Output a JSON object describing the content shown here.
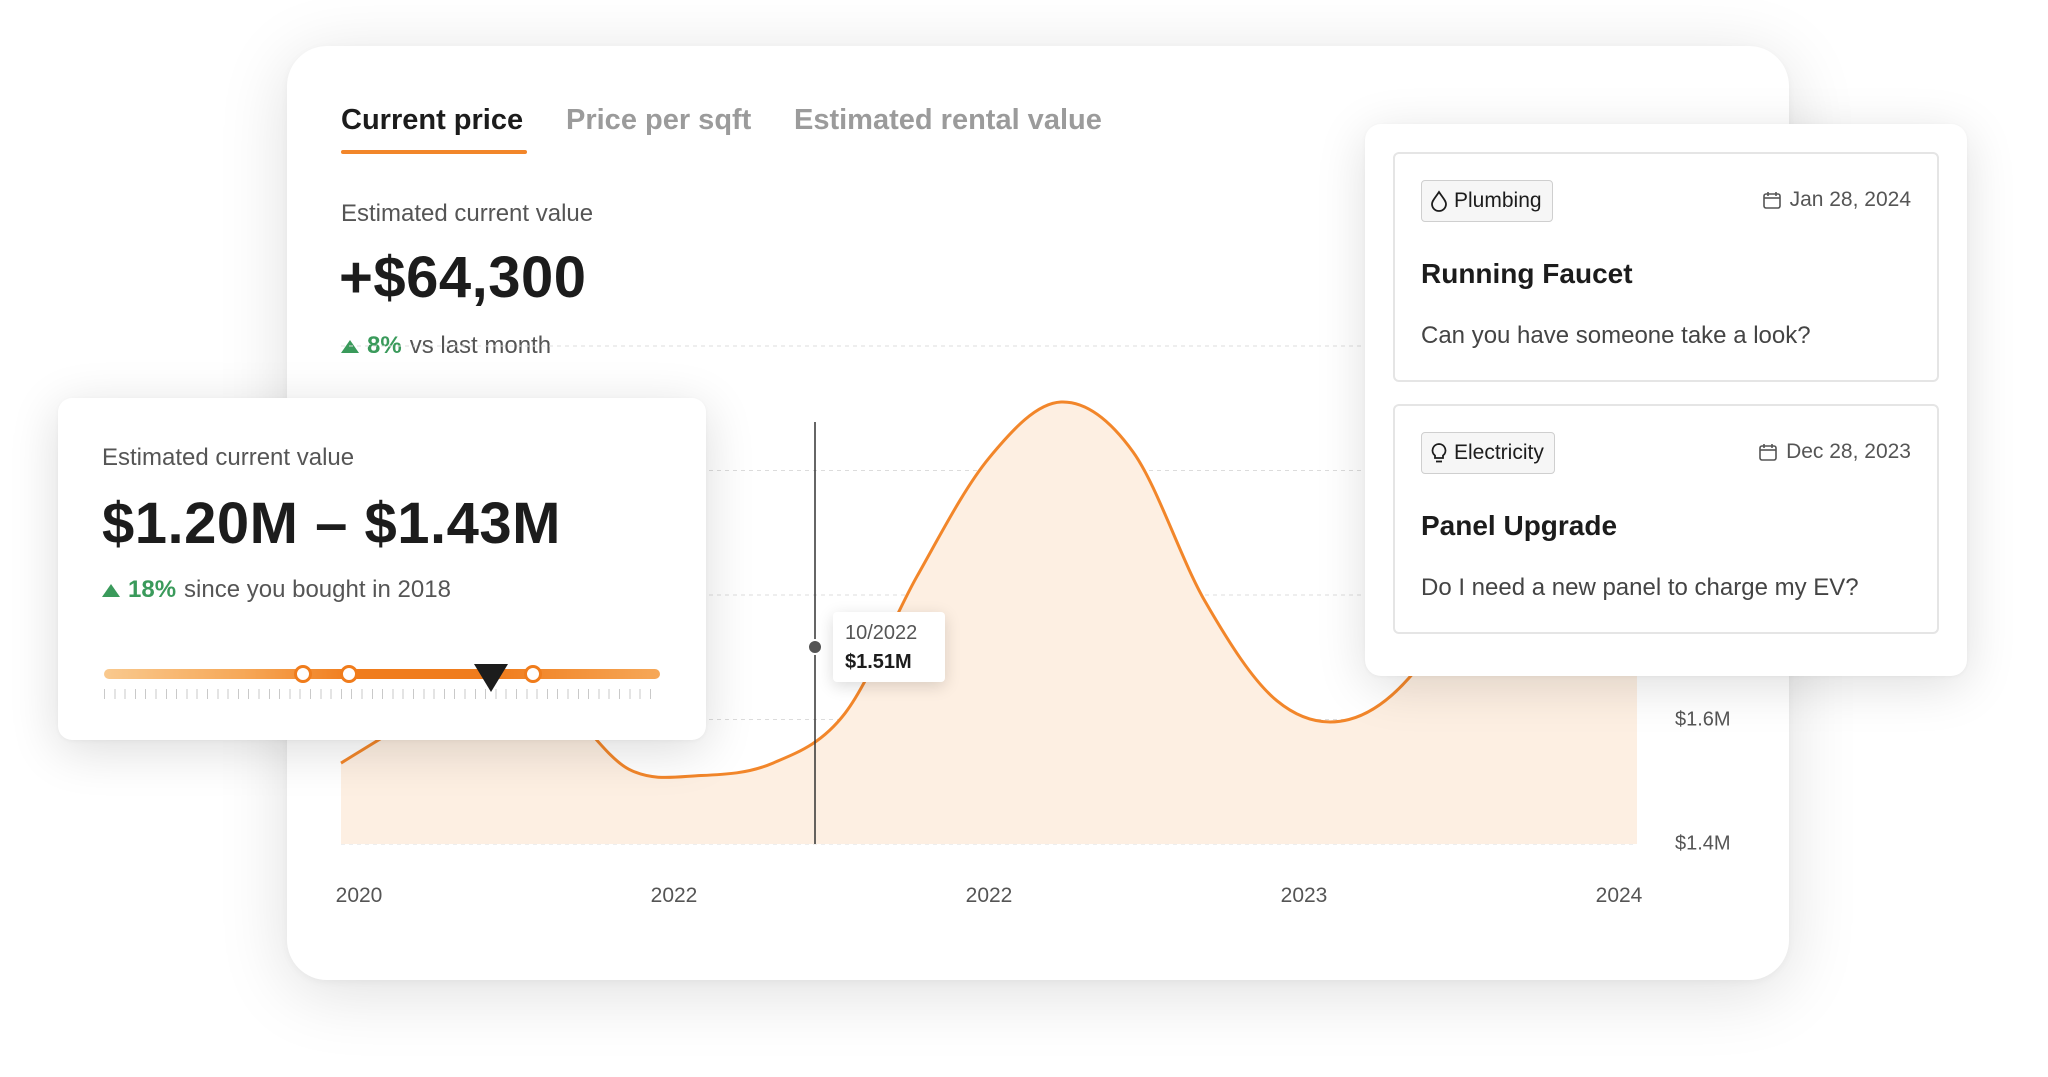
{
  "tabs": [
    {
      "label": "Current price",
      "active": true
    },
    {
      "label": "Price per sqft",
      "active": false
    },
    {
      "label": "Estimated rental value",
      "active": false
    }
  ],
  "summary": {
    "label": "Estimated current value",
    "value": "+$64,300",
    "delta_pct": "8%",
    "delta_text": "vs last month"
  },
  "range_card": {
    "label": "Estimated current value",
    "value": "$1.20M – $1.43M",
    "delta_pct": "18%",
    "delta_text": "since you bought in 2018",
    "slider_markers": [
      0.36,
      0.44,
      0.77
    ],
    "slider_handle": 0.59
  },
  "tooltip": {
    "date": "10/2022",
    "value": "$1.51M"
  },
  "chart_data": {
    "type": "area",
    "x_tick_labels": [
      "2020",
      "2022",
      "2022",
      "2023",
      "2024"
    ],
    "y_tick_labels": [
      "$1.6M",
      "$1.4M"
    ],
    "ylim": [
      1.4,
      2.2
    ],
    "grid": true,
    "series": [
      {
        "values": [
          1.53,
          1.6,
          1.66,
          1.63,
          1.52,
          1.51,
          1.53,
          1.61,
          1.83,
          2.02,
          2.11,
          2.03,
          1.79,
          1.63,
          1.6,
          1.69,
          1.9,
          2.08,
          2.13
        ]
      }
    ],
    "colors": {
      "line": "#f2862a",
      "fill": "#fdefe2"
    }
  },
  "tickets": [
    {
      "tag": "Plumbing",
      "tag_icon": "water-drop-icon",
      "date": "Jan 28, 2024",
      "title": "Running Faucet",
      "body": "Can you have someone take a look?"
    },
    {
      "tag": "Electricity",
      "tag_icon": "lightbulb-icon",
      "date": "Dec 28, 2023",
      "title": "Panel Upgrade",
      "body": "Do I need a new panel to charge my EV?"
    }
  ]
}
